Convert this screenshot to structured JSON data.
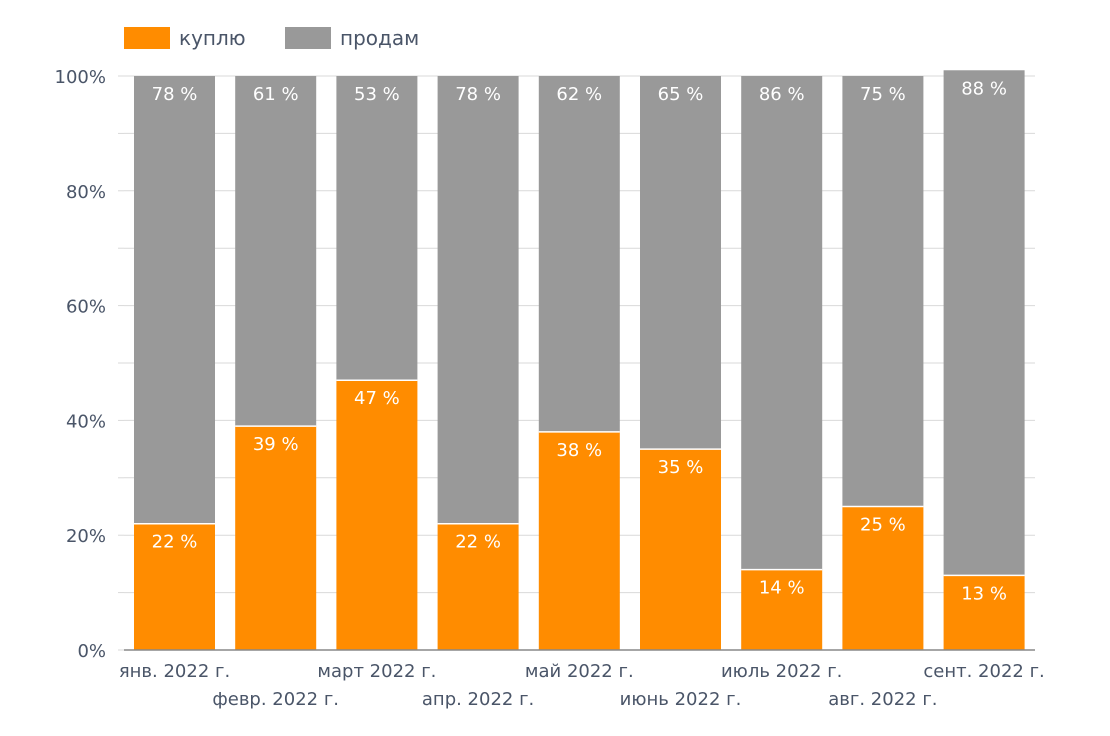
{
  "colors": {
    "buy": "#FF8C00",
    "sell": "#999999",
    "grid": "#D9D9D9",
    "axis": "#4A5568",
    "bar_label": "#FFFFFF",
    "background": "#FFFFFF"
  },
  "chart_data": {
    "type": "bar",
    "stacked": true,
    "percent_stacked": true,
    "legend_position": "top-left",
    "grid": true,
    "categories": [
      "янв. 2022 г.",
      "февр. 2022 г.",
      "март 2022 г.",
      "апр. 2022 г.",
      "май 2022 г.",
      "июнь 2022 г.",
      "июль 2022 г.",
      "авг. 2022 г.",
      "сент. 2022 г."
    ],
    "series": [
      {
        "name": "куплю",
        "color": "#FF8C00",
        "values": [
          22,
          39,
          47,
          22,
          38,
          35,
          14,
          25,
          13
        ],
        "labels": [
          "22 %",
          "39 %",
          "47 %",
          "22 %",
          "38 %",
          "35 %",
          "14 %",
          "25 %",
          "13 %"
        ]
      },
      {
        "name": "продам",
        "color": "#999999",
        "values": [
          78,
          61,
          53,
          78,
          62,
          65,
          86,
          75,
          88
        ],
        "labels": [
          "78 %",
          "61 %",
          "53 %",
          "78 %",
          "62 %",
          "65 %",
          "86 %",
          "75 %",
          "88 %"
        ]
      }
    ],
    "ylim": [
      0,
      100
    ],
    "yticks": [
      0,
      20,
      40,
      60,
      80,
      100
    ],
    "ytick_labels": [
      "0%",
      "20%",
      "40%",
      "60%",
      "80%",
      "100%"
    ],
    "title": "",
    "xlabel": "",
    "ylabel": ""
  }
}
